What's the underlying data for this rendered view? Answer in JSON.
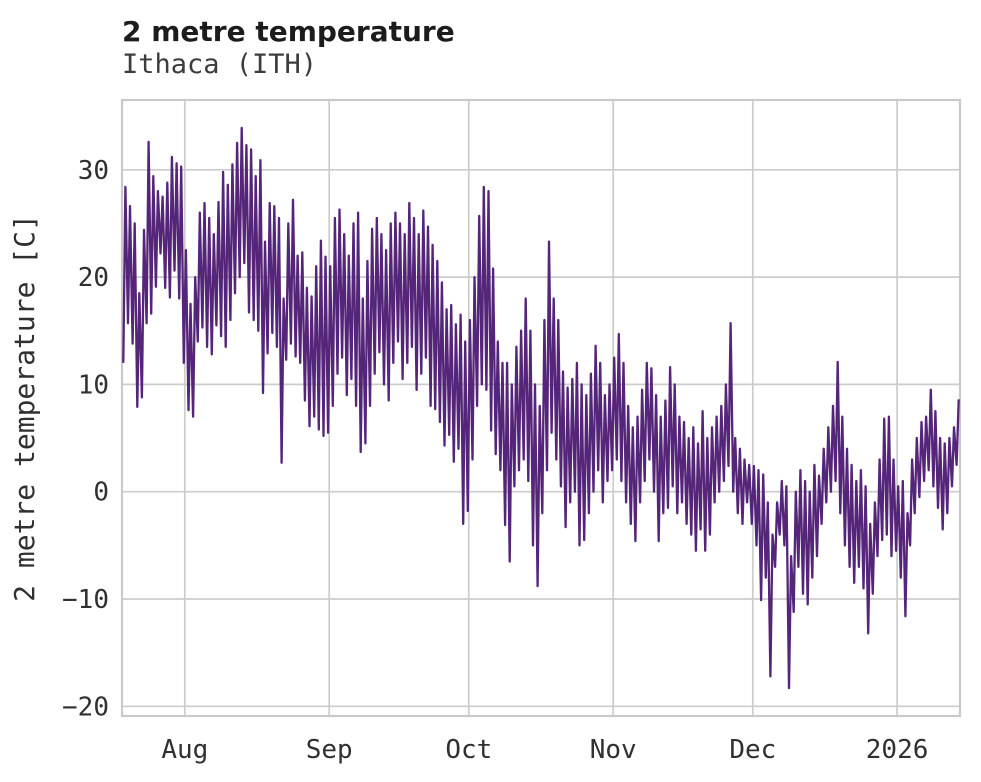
{
  "header": {
    "title": "2 metre temperature",
    "subtitle": "Ithaca (ITH)"
  },
  "chart_data": {
    "type": "line",
    "title": "2 metre temperature",
    "subtitle": "Ithaca (ITH)",
    "xlabel": "",
    "ylabel": "2 metre temperature [C]",
    "line_color": "#552579",
    "grid": true,
    "grid_color": "#cccccc",
    "border_color": "#c9c9c9",
    "background": "#ffffff",
    "ylim": [
      -20.9,
      36.5
    ],
    "x_range_days": [
      0,
      180
    ],
    "y_ticks": [
      {
        "label": "30",
        "value": 30
      },
      {
        "label": "20",
        "value": 20
      },
      {
        "label": "10",
        "value": 10
      },
      {
        "label": "0",
        "value": 0
      },
      {
        "label": "−10",
        "value": -10
      },
      {
        "label": "−20",
        "value": -20
      }
    ],
    "x_ticks": [
      {
        "label": "Aug",
        "day": 13.5
      },
      {
        "label": "Sep",
        "day": 44.5
      },
      {
        "label": "Oct",
        "day": 74.5
      },
      {
        "label": "Nov",
        "day": 105.5
      },
      {
        "label": "Dec",
        "day": 135.5
      },
      {
        "label": "2026",
        "day": 166.5
      }
    ],
    "daily": {
      "note": "per-day minimum and maximum of the plotted temperature trace, day 0 at left edge of axes",
      "min": [
        12,
        15.7,
        13.8,
        7.9,
        8.8,
        15.7,
        16.6,
        19.1,
        22.2,
        19,
        18.1,
        20.6,
        18,
        12,
        7.6,
        7,
        14,
        15.3,
        13.5,
        12.8,
        15.5,
        14.5,
        13.5,
        16,
        18.5,
        20,
        21.3,
        16.7,
        16,
        15,
        9.2,
        12.9,
        14.8,
        13.5,
        2.7,
        12.3,
        13.8,
        12.6,
        12,
        8.5,
        6.1,
        7,
        5.8,
        5.2,
        5.5,
        8,
        11,
        12.5,
        9,
        10.5,
        8,
        3.7,
        4.5,
        8,
        11,
        13,
        10,
        8.5,
        12,
        14,
        10.5,
        12,
        13.5,
        9.5,
        11,
        12.5,
        8,
        7.7,
        6.5,
        4.3,
        5.3,
        2.8,
        4,
        -3,
        -1.8,
        3,
        8,
        10,
        9.5,
        5.7,
        3.5,
        2,
        -3.1,
        -6.5,
        0.5,
        2,
        3,
        1,
        -5,
        -8.8,
        -2,
        2,
        5.5,
        3,
        0.5,
        -3.3,
        -1,
        0,
        -5,
        -4.5,
        -2,
        0,
        2,
        -1,
        1,
        2,
        3,
        1,
        -1,
        -3,
        -4.6,
        -1,
        1,
        3,
        0,
        -4.6,
        -2,
        -1.5,
        0.5,
        -2,
        -1,
        -3,
        -4,
        -5.5,
        -3.5,
        -5.5,
        -4,
        -1,
        0,
        1,
        2.4,
        0,
        -2,
        -3,
        -1,
        -3,
        -5,
        -10.1,
        -8,
        -17.2,
        -7,
        -4,
        -5,
        -18.3,
        -11.2,
        -7,
        -9.5,
        -10.5,
        -8,
        -6,
        -3,
        -1,
        0,
        1,
        -2,
        -5,
        -7,
        -8.5,
        -7,
        -9,
        -13.2,
        -9.5,
        -6,
        -4.5,
        -4,
        -6,
        -5.5,
        -8,
        -11.6,
        -5,
        -2,
        -0.5,
        1,
        2,
        0.5,
        -1.5,
        -3.5,
        -2,
        0.5,
        2.5
      ],
      "max": [
        28.4,
        26.6,
        25,
        18.5,
        24.4,
        32.6,
        29.4,
        28,
        27.5,
        28.8,
        31.2,
        30.6,
        30.3,
        22.5,
        17.5,
        20,
        26,
        26.9,
        25.5,
        24,
        27,
        29.8,
        28.6,
        30.5,
        32.5,
        33.9,
        32.3,
        31.9,
        29.4,
        30.9,
        23.3,
        26.9,
        26.6,
        25.5,
        18,
        25,
        27.2,
        22,
        22.3,
        19,
        18.2,
        21,
        23.4,
        21.9,
        21,
        25.5,
        26.3,
        24,
        22,
        25,
        26,
        18,
        21.5,
        24.5,
        25.5,
        24,
        22.5,
        25,
        26,
        25,
        24,
        26.9,
        25.5,
        24,
        26.2,
        24.7,
        23,
        21.5,
        19.5,
        17,
        17.4,
        15.6,
        16.5,
        14,
        16,
        20,
        25.7,
        28.4,
        28,
        20.8,
        14,
        12,
        12,
        10,
        13.5,
        15,
        18,
        15,
        10,
        8,
        16,
        23.3,
        18,
        16,
        11.2,
        9.7,
        10.5,
        12,
        10,
        9,
        11,
        13.6,
        12,
        9,
        10,
        12.5,
        14.7,
        12,
        8,
        6,
        7,
        9.5,
        12,
        11.5,
        9,
        7,
        8.5,
        11.6,
        10,
        7,
        6.5,
        5,
        6,
        4.5,
        7.5,
        5,
        6,
        7,
        8,
        10,
        15.7,
        5,
        4,
        3,
        2.5,
        2.4,
        2,
        1.6,
        -1,
        -4,
        -1,
        1,
        0.5,
        -6,
        0,
        2,
        1,
        0,
        2.5,
        1.5,
        4,
        6,
        8,
        12.1,
        7,
        4,
        2.5,
        1,
        2,
        0.5,
        -3,
        -1,
        3,
        6.8,
        7,
        3,
        0.5,
        1,
        -2,
        3,
        5,
        6.5,
        7,
        9.5,
        7.5,
        5,
        4.5,
        5,
        6,
        8.6
      ]
    }
  }
}
